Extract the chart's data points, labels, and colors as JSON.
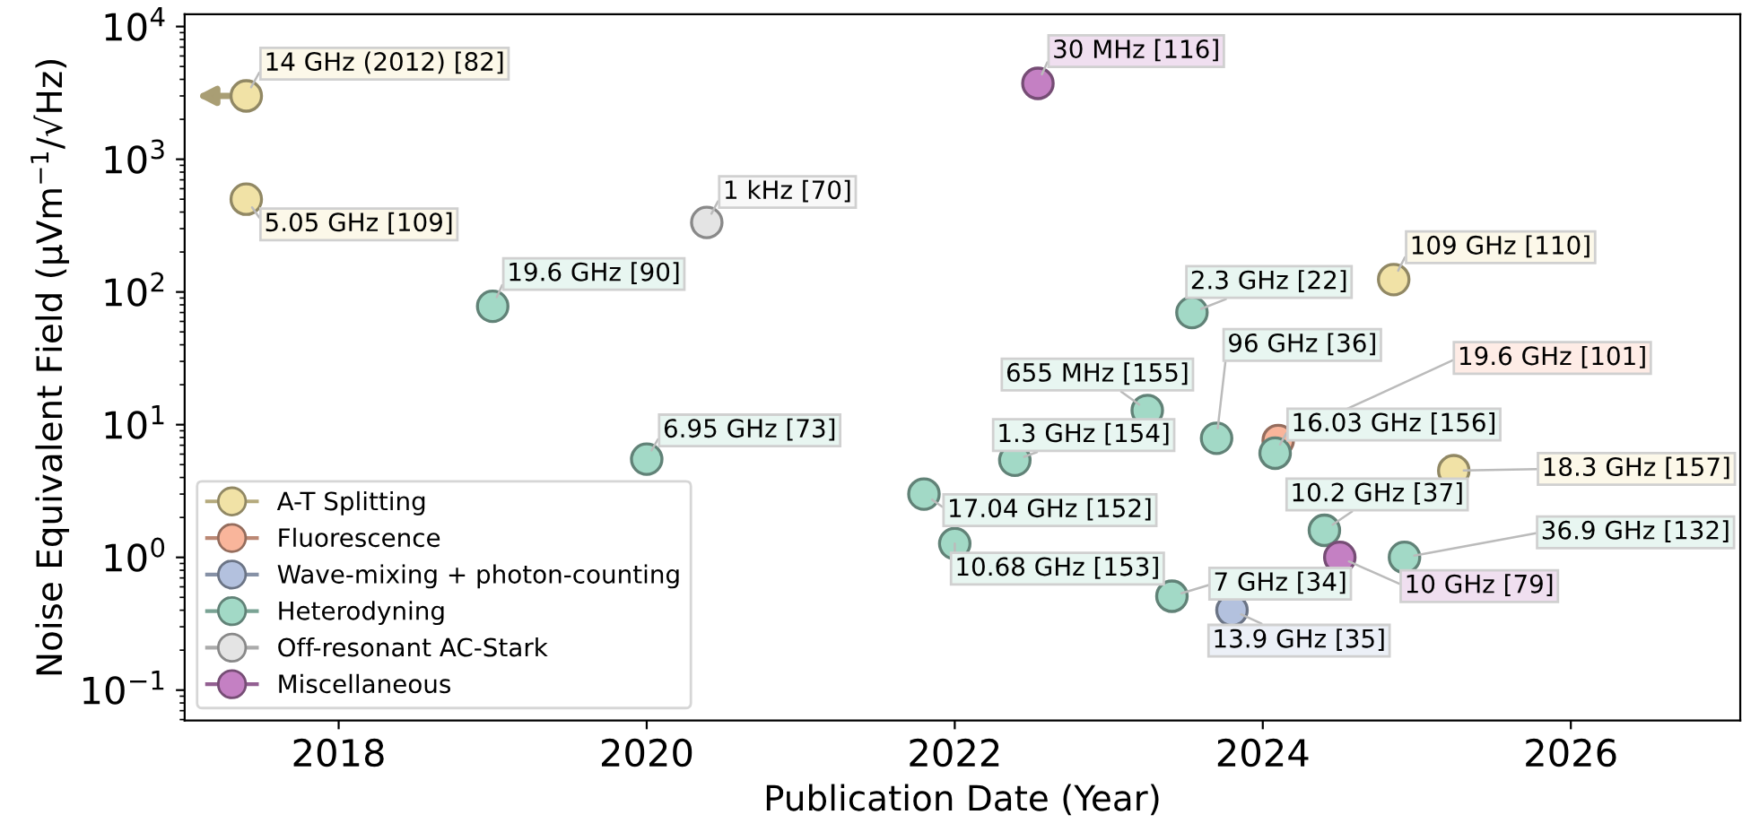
{
  "chart_data": {
    "type": "scatter",
    "xlabel": "Publication Date (Year)",
    "ylabel": "Noise Equivalent Field (µVm$^{−1}$/√Hz)",
    "log": "y",
    "xlim": [
      2017,
      2027.1
    ],
    "xticks": [
      2018,
      2020,
      2022,
      2024,
      2026
    ],
    "ylim": [
      0.059,
      12400
    ],
    "yticks": [
      {
        "value": 0.1,
        "label": "10$^{−1}$"
      },
      {
        "value": 1,
        "label": "10$^{0}$"
      },
      {
        "value": 10,
        "label": "10$^{1}$"
      },
      {
        "value": 100,
        "label": "10$^{2}$"
      },
      {
        "value": 1000,
        "label": "10$^{3}$"
      },
      {
        "value": 10000,
        "label": "10$^{4}$"
      }
    ],
    "grid": false,
    "legend": "bottom left",
    "marker": "circle",
    "series": [
      {
        "name": "A-T Splitting",
        "color": "#f1e2a6",
        "x": [
          2017.4,
          2017.4,
          2024.85,
          2025.24
        ],
        "values": [
          3000,
          500,
          124,
          4.5
        ]
      },
      {
        "name": "Fluorescence",
        "color": "#f9b59b",
        "x": [
          2024.1
        ],
        "values": [
          7.6
        ]
      },
      {
        "name": "Wave-mixing + photon-counting",
        "color": "#b3c1de",
        "x": [
          2023.8
        ],
        "values": [
          0.4
        ]
      },
      {
        "name": "Heterodyning",
        "color": "#a2d9c6",
        "x": [
          2019.0,
          2020.0,
          2021.8,
          2022.0,
          2022.39,
          2023.25,
          2023.41,
          2023.54,
          2023.7,
          2024.08,
          2024.4,
          2024.92
        ],
        "values": [
          78,
          5.5,
          3.0,
          1.27,
          5.4,
          12.8,
          0.51,
          70,
          7.9,
          6.1,
          1.6,
          1.0
        ]
      },
      {
        "name": "Off-resonant AC-Stark",
        "color": "#e4e4e4",
        "x": [
          2020.39
        ],
        "values": [
          334
        ]
      },
      {
        "name": "Miscellaneous",
        "color": "#c480c3",
        "x": [
          2022.54,
          2024.5
        ],
        "values": [
          3730,
          1.0
        ]
      }
    ],
    "annotations": [
      {
        "text": "14 GHz (2012) [82]",
        "x": 2017.4,
        "y": 3000
      },
      {
        "text": "5.05 GHz [109]",
        "x": 2017.4,
        "y": 500
      },
      {
        "text": "109 GHz [110]",
        "x": 2024.85,
        "y": 124
      },
      {
        "text": "18.3 GHz [157]",
        "x": 2025.24,
        "y": 4.5
      },
      {
        "text": "19.6 GHz [101]",
        "x": 2024.1,
        "y": 7.6
      },
      {
        "text": "13.9 GHz [35]",
        "x": 2023.8,
        "y": 0.4
      },
      {
        "text": "19.6 GHz [90]",
        "x": 2019.0,
        "y": 78
      },
      {
        "text": "6.95 GHz [73]",
        "x": 2020.0,
        "y": 5.5
      },
      {
        "text": "17.04 GHz [152]",
        "x": 2021.8,
        "y": 3.0
      },
      {
        "text": "10.68 GHz [153]",
        "x": 2022.0,
        "y": 1.27
      },
      {
        "text": "1.3 GHz [154]",
        "x": 2022.39,
        "y": 5.4
      },
      {
        "text": "655 MHz [155]",
        "x": 2023.25,
        "y": 12.8
      },
      {
        "text": "7 GHz [34]",
        "x": 2023.41,
        "y": 0.51
      },
      {
        "text": "2.3 GHz [22]",
        "x": 2023.54,
        "y": 70
      },
      {
        "text": "96 GHz [36]",
        "x": 2023.7,
        "y": 7.9
      },
      {
        "text": "16.03 GHz [156]",
        "x": 2024.08,
        "y": 6.1
      },
      {
        "text": "10.2 GHz [37]",
        "x": 2024.4,
        "y": 1.6
      },
      {
        "text": "36.9 GHz [132]",
        "x": 2024.92,
        "y": 1.0
      },
      {
        "text": "1 kHz [70]",
        "x": 2020.39,
        "y": 334
      },
      {
        "text": "30 MHz [116]",
        "x": 2022.54,
        "y": 3730
      },
      {
        "text": "10 GHz [79]",
        "x": 2024.5,
        "y": 1.0
      }
    ]
  }
}
